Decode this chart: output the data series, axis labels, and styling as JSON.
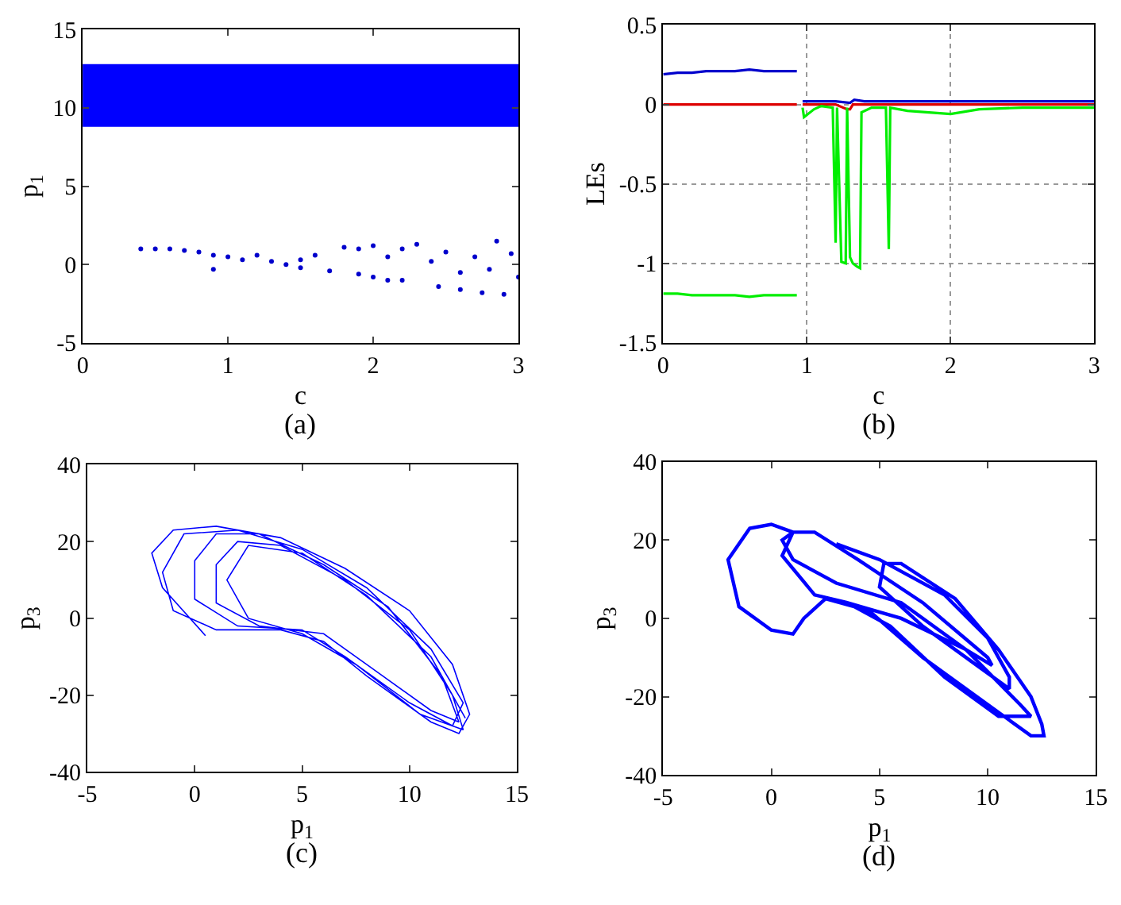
{
  "chart_data": [
    {
      "type": "scatter",
      "xlabel": "c",
      "ylabel": "p$_{1}$",
      "annotations": [
        "(a)"
      ],
      "xlim": [
        0,
        3
      ],
      "xticks": [
        0,
        1,
        2,
        3
      ],
      "ylim": [
        -5,
        15
      ],
      "yticks": [
        -5,
        0,
        5,
        10,
        15
      ],
      "marker": "circle",
      "grid": false,
      "legend": false,
      "bands": [
        {
          "axis": "y",
          "from": 8.8,
          "to": 12.8,
          "color": "#0000ff"
        }
      ],
      "series": [
        {
          "type": "scatter",
          "color": "#0000cc",
          "x": [
            0.4,
            0.5,
            0.6,
            0.7,
            0.8,
            0.9,
            0.9,
            1.0,
            1.1,
            1.2,
            1.3,
            1.4,
            1.5,
            1.5,
            1.6,
            1.7,
            1.8,
            1.9,
            1.9,
            2.0,
            2.0,
            2.1,
            2.1,
            2.2,
            2.2,
            2.3,
            2.4,
            2.45,
            2.5,
            2.6,
            2.6,
            2.7,
            2.75,
            2.8,
            2.85,
            2.9,
            2.95,
            3.0
          ],
          "values": [
            1.0,
            1.0,
            1.0,
            0.9,
            0.8,
            0.6,
            -0.3,
            0.5,
            0.3,
            0.6,
            0.2,
            0.0,
            0.3,
            -0.2,
            0.6,
            -0.4,
            1.1,
            1.0,
            -0.6,
            1.2,
            -0.8,
            0.5,
            -1.0,
            1.0,
            -1.0,
            1.3,
            0.2,
            -1.4,
            0.8,
            -0.5,
            -1.6,
            0.5,
            -1.8,
            -0.3,
            1.5,
            -1.9,
            0.7,
            -0.8
          ]
        }
      ]
    },
    {
      "type": "line",
      "xlabel": "c",
      "ylabel": "LEs",
      "annotations": [
        "(b)"
      ],
      "xlim": [
        0,
        3
      ],
      "xticks": [
        0,
        1,
        2,
        3
      ],
      "ylim": [
        -1.5,
        0.5
      ],
      "yticks": [
        -1.5,
        -1,
        -0.5,
        0,
        0.5
      ],
      "grid": true,
      "legend": false,
      "line_style": "solid",
      "marker": "none",
      "series": [
        {
          "color": "#0000cc",
          "x": [
            0,
            0.1,
            0.2,
            0.3,
            0.4,
            0.5,
            0.6,
            0.7,
            0.8,
            0.9,
            0.93,
            0.95,
            0.97,
            1.1,
            1.2,
            1.3,
            1.33,
            1.4,
            1.6,
            1.8,
            2.0,
            2.3,
            2.6,
            3.0
          ],
          "values": [
            0.19,
            0.2,
            0.2,
            0.21,
            0.21,
            0.21,
            0.22,
            0.21,
            0.21,
            0.21,
            0.21,
            null,
            0.02,
            0.02,
            0.02,
            0.01,
            0.03,
            0.02,
            0.02,
            0.02,
            0.02,
            0.02,
            0.02,
            0.02
          ]
        },
        {
          "color": "#dd0000",
          "x": [
            0,
            0.3,
            0.6,
            0.93,
            0.95,
            0.97,
            1.2,
            1.28,
            1.3,
            1.32,
            1.4,
            2.0,
            3.0
          ],
          "values": [
            0,
            0,
            0,
            0,
            null,
            0,
            0,
            -0.03,
            -0.03,
            0,
            0,
            0,
            0
          ]
        },
        {
          "color": "#00ee00",
          "x": [
            0,
            0.1,
            0.2,
            0.3,
            0.4,
            0.5,
            0.6,
            0.7,
            0.8,
            0.9,
            0.93,
            0.95,
            0.97,
            0.98,
            1.05,
            1.1,
            1.18,
            1.2,
            1.21,
            1.24,
            1.27,
            1.28,
            1.3,
            1.32,
            1.35,
            1.37,
            1.38,
            1.45,
            1.55,
            1.57,
            1.58,
            1.7,
            1.85,
            2.0,
            2.2,
            2.5,
            2.8,
            3.0
          ],
          "values": [
            -1.19,
            -1.19,
            -1.2,
            -1.2,
            -1.2,
            -1.2,
            -1.21,
            -1.2,
            -1.2,
            -1.2,
            -1.2,
            null,
            -0.02,
            -0.08,
            -0.03,
            -0.01,
            -0.02,
            -0.87,
            -0.02,
            -0.99,
            -1.0,
            -0.02,
            -0.96,
            -1.0,
            -1.02,
            -1.03,
            -0.05,
            -0.02,
            -0.02,
            -0.91,
            -0.02,
            -0.04,
            -0.05,
            -0.06,
            -0.03,
            -0.02,
            -0.02,
            -0.02
          ]
        }
      ]
    },
    {
      "type": "line",
      "xlabel": "p$_{1}$",
      "ylabel": "p$_{3}$",
      "annotations": [
        "(c)"
      ],
      "xlim": [
        -5,
        15
      ],
      "xticks": [
        -5,
        0,
        5,
        10,
        15
      ],
      "ylim": [
        -40,
        40
      ],
      "yticks": [
        -40,
        -20,
        0,
        20,
        40
      ],
      "grid": false,
      "legend": false,
      "line_style": "solid",
      "marker": "none",
      "series": [
        {
          "color": "#0000ff",
          "x": [
            0.5,
            -1.5,
            -2,
            -1,
            1,
            4,
            7,
            10,
            12,
            12.8,
            12.3,
            11,
            8,
            6,
            4,
            1,
            -1,
            -1.5,
            -0.5,
            2,
            5,
            8,
            11,
            12.5,
            12,
            10,
            7,
            5,
            2,
            0,
            0,
            1,
            3,
            6,
            9,
            11.5,
            12.3,
            11,
            8,
            6,
            3,
            1,
            1,
            2,
            4,
            7,
            10,
            12,
            12.5,
            10.5,
            7.5,
            5,
            2.5,
            1.5,
            2.5,
            5,
            8,
            11,
            12.6
          ],
          "values": [
            -4.5,
            8,
            17,
            23,
            24,
            21,
            13,
            2,
            -12,
            -25,
            -30,
            -27,
            -15,
            -6,
            -3,
            -3,
            2,
            12,
            22,
            23,
            18,
            8,
            -8,
            -22,
            -28,
            -22,
            -10,
            -3,
            -2,
            5,
            15,
            22,
            22,
            14,
            3,
            -15,
            -27,
            -24,
            -12,
            -4,
            -2,
            4,
            14,
            20,
            19,
            10,
            -3,
            -20,
            -29,
            -25,
            -12,
            -4,
            0,
            10,
            19,
            17,
            6,
            -10,
            -26
          ]
        }
      ]
    },
    {
      "type": "line",
      "xlabel": "p$_{1}$",
      "ylabel": "p$_{3}$",
      "annotations": [
        "(d)"
      ],
      "xlim": [
        -5,
        15
      ],
      "xticks": [
        -5,
        0,
        5,
        10,
        15
      ],
      "ylim": [
        -40,
        40
      ],
      "yticks": [
        -40,
        -20,
        0,
        20,
        40
      ],
      "grid": false,
      "legend": false,
      "line_style": "solid",
      "marker": "none",
      "series": [
        {
          "color": "#0000ff",
          "x": [
            3,
            5,
            8,
            10,
            11,
            11,
            9.5,
            7,
            5,
            5.2,
            6,
            8.5,
            10.5,
            12,
            12.5,
            12.6,
            12,
            10,
            7,
            4.5,
            2.5,
            1.5,
            1,
            0,
            -1.5,
            -2,
            -1,
            0,
            1,
            0.5,
            1,
            3,
            6,
            9,
            11.5,
            12,
            10.5,
            8,
            5.5,
            3.5,
            2,
            0.5,
            1,
            2,
            4,
            7,
            10,
            10.2,
            9,
            6,
            3.5
          ],
          "values": [
            19,
            15,
            6,
            -5,
            -15,
            -18,
            -12,
            -2,
            8,
            14,
            14,
            5,
            -8,
            -20,
            -27,
            -30,
            -30,
            -22,
            -10,
            2,
            5,
            0,
            -4,
            -3,
            3,
            15,
            23,
            24,
            22,
            20,
            15,
            9,
            4,
            -8,
            -22,
            -25,
            -25,
            -15,
            -2,
            4,
            6,
            16,
            22,
            22,
            15,
            4,
            -10,
            -12,
            -8,
            0,
            4
          ]
        }
      ]
    }
  ]
}
